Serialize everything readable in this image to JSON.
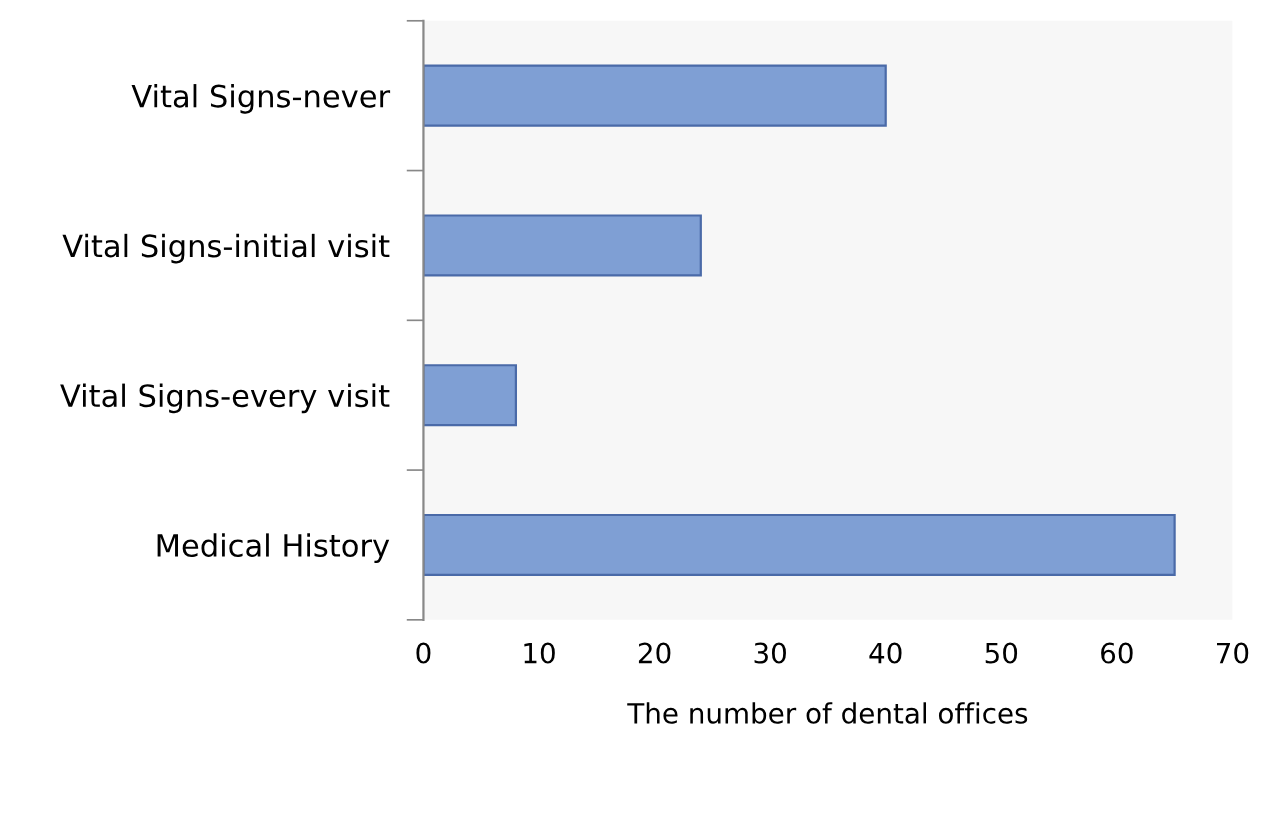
{
  "chart_data": {
    "type": "bar",
    "orientation": "horizontal",
    "xlabel": "The number of dental offices",
    "categories": [
      "Vital Signs-never",
      "Vital Signs-initial visit",
      "Vital Signs-every visit",
      "Medical History"
    ],
    "values": [
      40,
      24,
      8,
      65
    ],
    "color": "#7f9fd4",
    "xlim": [
      0,
      70
    ],
    "xticks": [
      0,
      10,
      20,
      30,
      40,
      50,
      60,
      70
    ],
    "grid": false,
    "legend": false
  }
}
